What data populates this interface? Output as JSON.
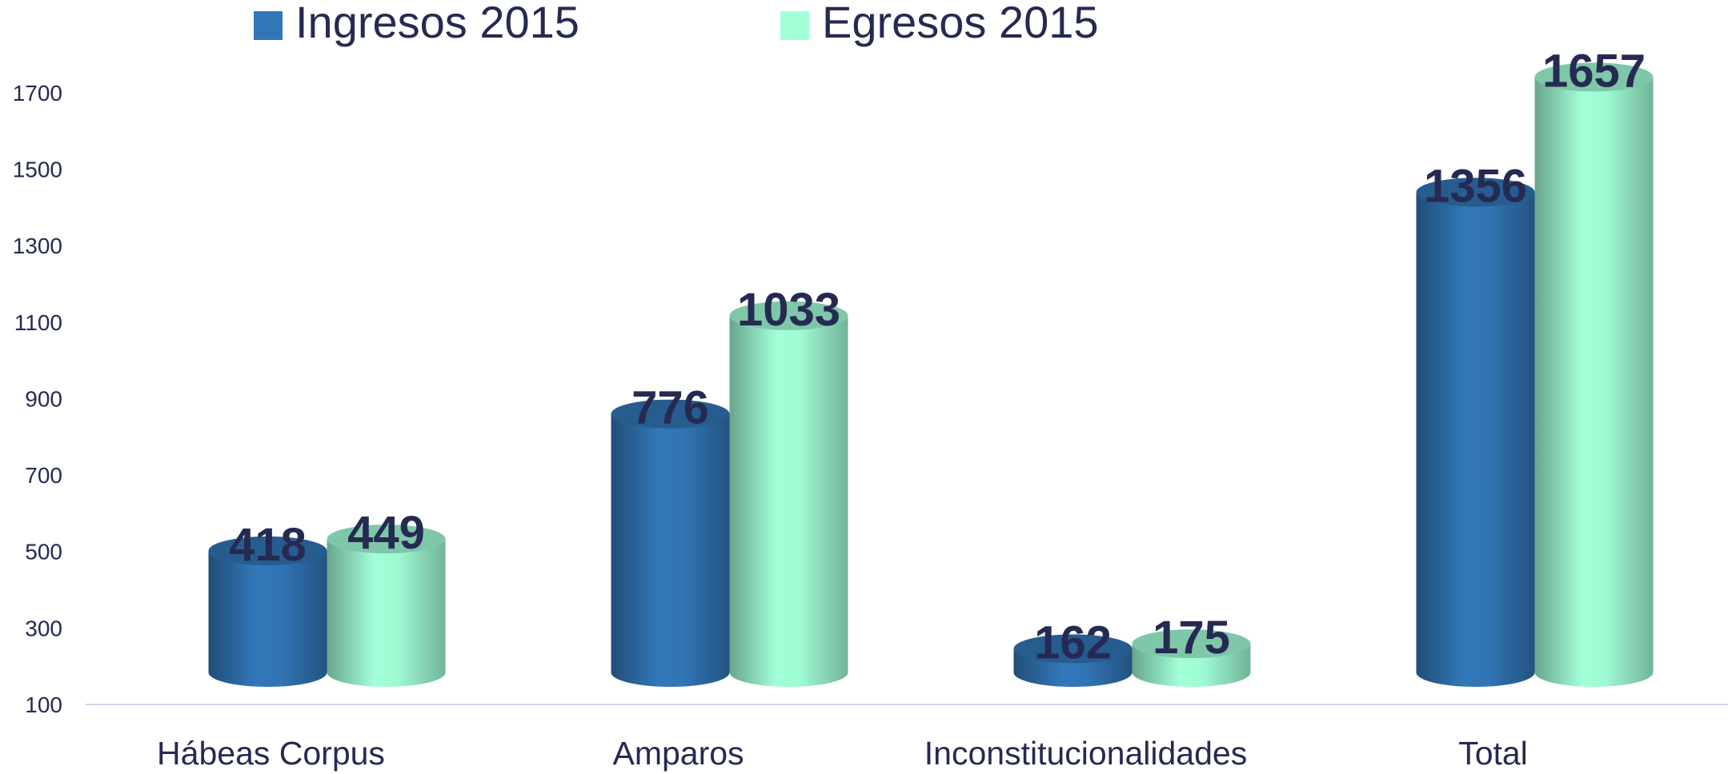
{
  "chart_data": {
    "type": "bar",
    "categories": [
      "Hábeas  Corpus",
      "Amparos",
      "Inconstitucionalidades",
      "Total"
    ],
    "series": [
      {
        "name": "Ingresos 2015",
        "color": "#3277b8",
        "values": [
          418,
          776,
          162,
          1356
        ]
      },
      {
        "name": "Egresos 2015",
        "color": "#a2ffd8",
        "values": [
          449,
          1033,
          175,
          1657
        ]
      }
    ],
    "ylim": [
      100,
      1800
    ],
    "yticks": [
      100,
      300,
      500,
      700,
      900,
      1100,
      1300,
      1500,
      1700
    ],
    "grid": false,
    "legend": "top"
  }
}
